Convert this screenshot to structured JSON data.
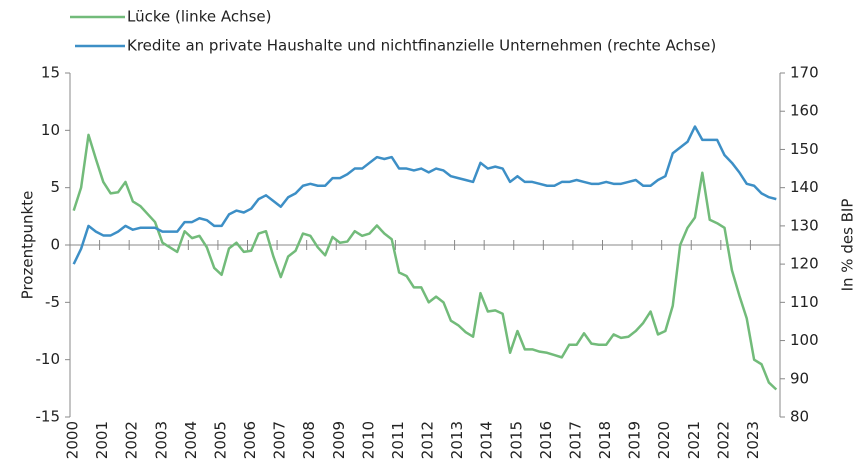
{
  "chart_data": {
    "type": "line",
    "y_label": "Prozentpunkte",
    "y2_label": "In % des BIP",
    "categories": [
      "2000",
      null,
      null,
      null,
      "2001",
      null,
      null,
      null,
      "2002",
      null,
      null,
      null,
      "2003",
      null,
      null,
      null,
      "2004",
      null,
      null,
      null,
      "2005",
      null,
      null,
      null,
      "2006",
      null,
      null,
      null,
      "2007",
      null,
      null,
      null,
      "2008",
      null,
      null,
      null,
      "2009",
      null,
      null,
      null,
      "2010",
      null,
      null,
      null,
      "2011",
      null,
      null,
      null,
      "2012",
      null,
      null,
      null,
      "2013",
      null,
      null,
      null,
      "2014",
      null,
      null,
      null,
      "2015",
      null,
      null,
      null,
      "2016",
      null,
      null,
      null,
      "2017",
      null,
      null,
      null,
      "2018",
      null,
      null,
      null,
      "2019",
      null,
      null,
      null,
      "2020",
      null,
      null,
      null,
      "2021",
      null,
      null,
      null,
      "2022",
      null,
      null,
      null,
      "2023",
      null,
      null,
      null
    ],
    "ylim": [
      -15,
      15
    ],
    "yticks": [
      -15,
      -10,
      -5,
      0,
      5,
      10,
      15
    ],
    "y2lim": [
      80,
      170
    ],
    "y2ticks": [
      80,
      90,
      100,
      110,
      120,
      130,
      140,
      150,
      160,
      170
    ],
    "series": [
      {
        "name": "Lücke (linke Achse)",
        "color": "#72bb7a",
        "axis": "y",
        "values": [
          3,
          5,
          9.6,
          7.5,
          5.5,
          4.5,
          4.6,
          5.5,
          3.8,
          3.4,
          2.7,
          2.0,
          0.2,
          -0.2,
          -0.6,
          1.2,
          0.6,
          0.8,
          -0.2,
          -2.0,
          -2.6,
          -0.3,
          0.2,
          -0.6,
          -0.5,
          1.0,
          1.2,
          -1.0,
          -2.8,
          -1.0,
          -0.5,
          1.0,
          0.8,
          -0.2,
          -0.9,
          0.7,
          0.2,
          0.3,
          1.2,
          0.8,
          1.0,
          1.7,
          1.0,
          0.5,
          -2.4,
          -2.7,
          -3.7,
          -3.7,
          -5.0,
          -4.5,
          -5.0,
          -6.6,
          -7.0,
          -7.6,
          -8.0,
          -4.2,
          -5.8,
          -5.7,
          -6.0,
          -9.4,
          -7.5,
          -9.1,
          -9.1,
          -9.3,
          -9.4,
          -9.6,
          -9.8,
          -8.7,
          -8.7,
          -7.7,
          -8.6,
          -8.7,
          -8.7,
          -7.8,
          -8.1,
          -8.0,
          -7.5,
          -6.8,
          -5.8,
          -7.8,
          -7.5,
          -5.3,
          0,
          1.5,
          2.4,
          6.3,
          2.2,
          1.9,
          1.5,
          -2.2,
          -4.4,
          -6.4,
          -10.0,
          -10.4,
          -12.0,
          -12.6
        ]
      },
      {
        "name": "Kredite an private Haushalte und nichtfinanzielle Unternehmen (rechte Achse)",
        "color": "#3d8fc6",
        "axis": "y2",
        "values": [
          120,
          124,
          130,
          128.5,
          127.5,
          127.5,
          128.5,
          130,
          129,
          129.5,
          129.5,
          129.5,
          128.5,
          128.5,
          128.5,
          131,
          131,
          132,
          131.5,
          130,
          130,
          133,
          134,
          133.5,
          134.5,
          137,
          138,
          136.5,
          135,
          137.5,
          138.5,
          140.5,
          141,
          140.5,
          140.5,
          142.5,
          142.5,
          143.5,
          145,
          145,
          146.5,
          148,
          147.5,
          148,
          145,
          145,
          144.5,
          145,
          144,
          145,
          144.5,
          143,
          142.5,
          142,
          141.5,
          146.5,
          145,
          145.5,
          145,
          141.5,
          143,
          141.5,
          141.5,
          141,
          140.5,
          140.5,
          141.5,
          141.5,
          142,
          141.5,
          141,
          141,
          141.5,
          141,
          141,
          141.5,
          142,
          140.5,
          140.5,
          142,
          143,
          149,
          150.5,
          152,
          156,
          152.5,
          152.5,
          152.5,
          148.5,
          146.5,
          144,
          141,
          140.5,
          138.5,
          137.5,
          137
        ]
      }
    ]
  }
}
